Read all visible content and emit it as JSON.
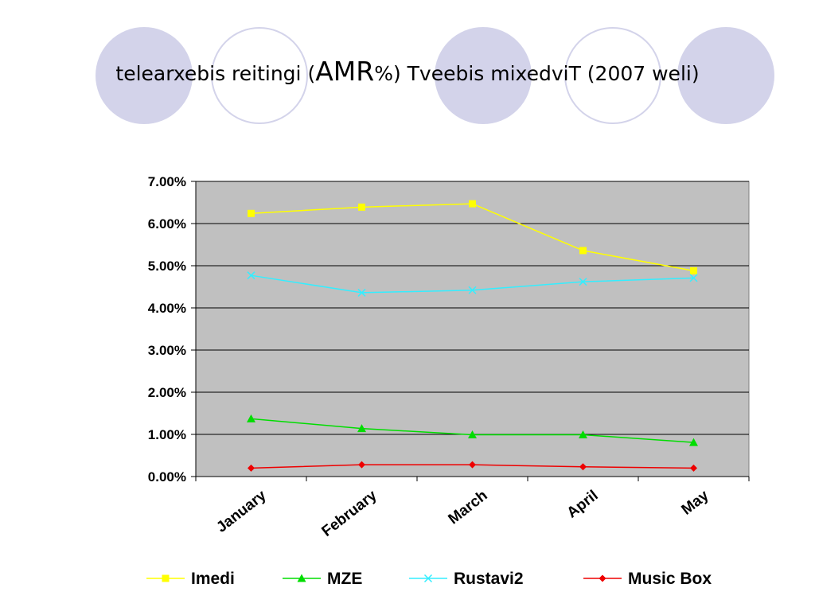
{
  "header": {
    "title_prefix": "telearxebis reitingi (",
    "title_big": "AMR",
    "title_suffix": "%) Tveebis mixedviT (2007 weli)",
    "decor_color": "#d3d3ea"
  },
  "chart_data": {
    "type": "line",
    "categories": [
      "January",
      "February",
      "March",
      "April",
      "May"
    ],
    "ylim": [
      0,
      0.07
    ],
    "yticks": [
      "0.00%",
      "1.00%",
      "2.00%",
      "3.00%",
      "4.00%",
      "5.00%",
      "6.00%",
      "7.00%"
    ],
    "grid": true,
    "plot_background": "#c0c0c0",
    "legend_position": "bottom",
    "series": [
      {
        "name": "Imedi",
        "color": "#ffff00",
        "marker": "square",
        "values": [
          0.0624,
          0.0639,
          0.0647,
          0.0536,
          0.0488
        ]
      },
      {
        "name": "MZE",
        "color": "#00dd00",
        "marker": "triangle",
        "values": [
          0.0137,
          0.0114,
          0.0099,
          0.0099,
          0.0081
        ]
      },
      {
        "name": "Rustavi2",
        "color": "#33eeff",
        "marker": "x",
        "values": [
          0.0477,
          0.0436,
          0.0442,
          0.0462,
          0.0471
        ]
      },
      {
        "name": "Music Box",
        "color": "#ee0000",
        "marker": "diamond",
        "values": [
          0.002,
          0.0028,
          0.0028,
          0.0023,
          0.002
        ]
      }
    ]
  }
}
